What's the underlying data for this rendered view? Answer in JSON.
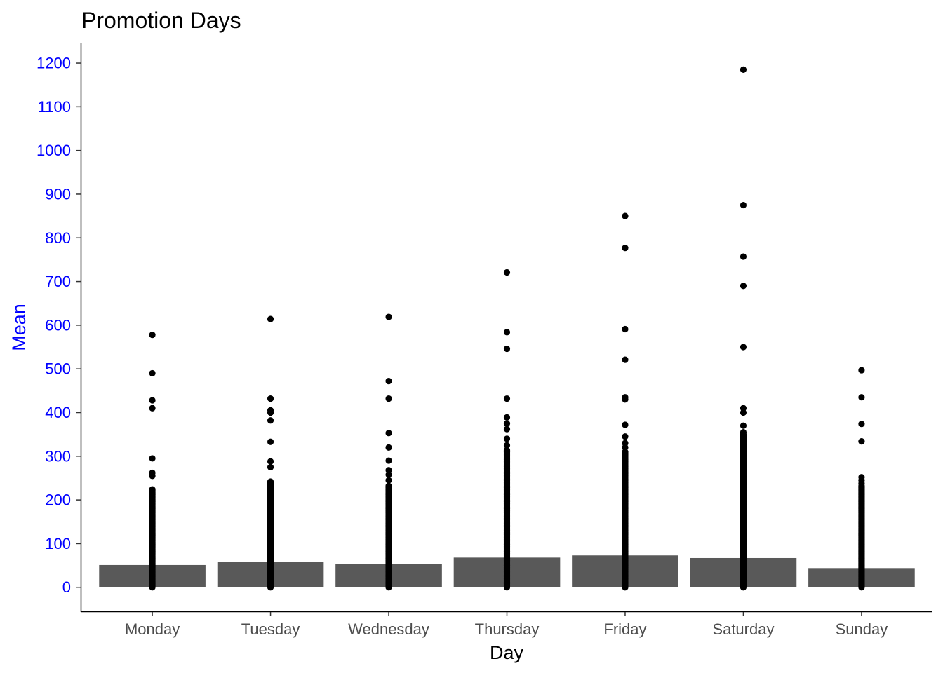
{
  "chart_data": {
    "type": "bar",
    "title": "Promotion Days",
    "xlabel": "Day",
    "ylabel": "Mean",
    "categories": [
      "Monday",
      "Tuesday",
      "Wednesday",
      "Thursday",
      "Friday",
      "Saturday",
      "Sunday"
    ],
    "values": [
      51,
      58,
      54,
      68,
      73,
      67,
      44
    ],
    "ylim": [
      -55,
      1245
    ],
    "yticks": [
      0,
      100,
      200,
      300,
      400,
      500,
      600,
      700,
      800,
      900,
      1000,
      1100,
      1200
    ],
    "grid": false,
    "colors": {
      "bar": "#595959",
      "point": "#000000",
      "axis_text_y": "#0000ff",
      "axis_title_y": "#0000ff",
      "axis_text_x": "#4d4d4d"
    },
    "outliers": [
      {
        "category": "Monday",
        "values": [
          578,
          490,
          428,
          410,
          295,
          262,
          255
        ],
        "dense_range": [
          0,
          225
        ]
      },
      {
        "category": "Tuesday",
        "values": [
          614,
          432,
          405,
          400,
          382,
          333,
          288,
          275
        ],
        "dense_range": [
          0,
          242
        ]
      },
      {
        "category": "Wednesday",
        "values": [
          619,
          472,
          432,
          353,
          320,
          290,
          268,
          258,
          245
        ],
        "dense_range": [
          0,
          232
        ]
      },
      {
        "category": "Thursday",
        "values": [
          721,
          584,
          546,
          432,
          389,
          375,
          362,
          340,
          325
        ],
        "dense_range": [
          0,
          315
        ]
      },
      {
        "category": "Friday",
        "values": [
          850,
          777,
          591,
          521,
          435,
          430,
          372,
          345,
          330,
          320
        ],
        "dense_range": [
          0,
          310
        ]
      },
      {
        "category": "Saturday",
        "values": [
          1185,
          875,
          757,
          690,
          550,
          410,
          400,
          370,
          355
        ],
        "dense_range": [
          0,
          350
        ]
      },
      {
        "category": "Sunday",
        "values": [
          497,
          435,
          374,
          334,
          252,
          245,
          238
        ],
        "dense_range": [
          0,
          232
        ]
      }
    ]
  }
}
